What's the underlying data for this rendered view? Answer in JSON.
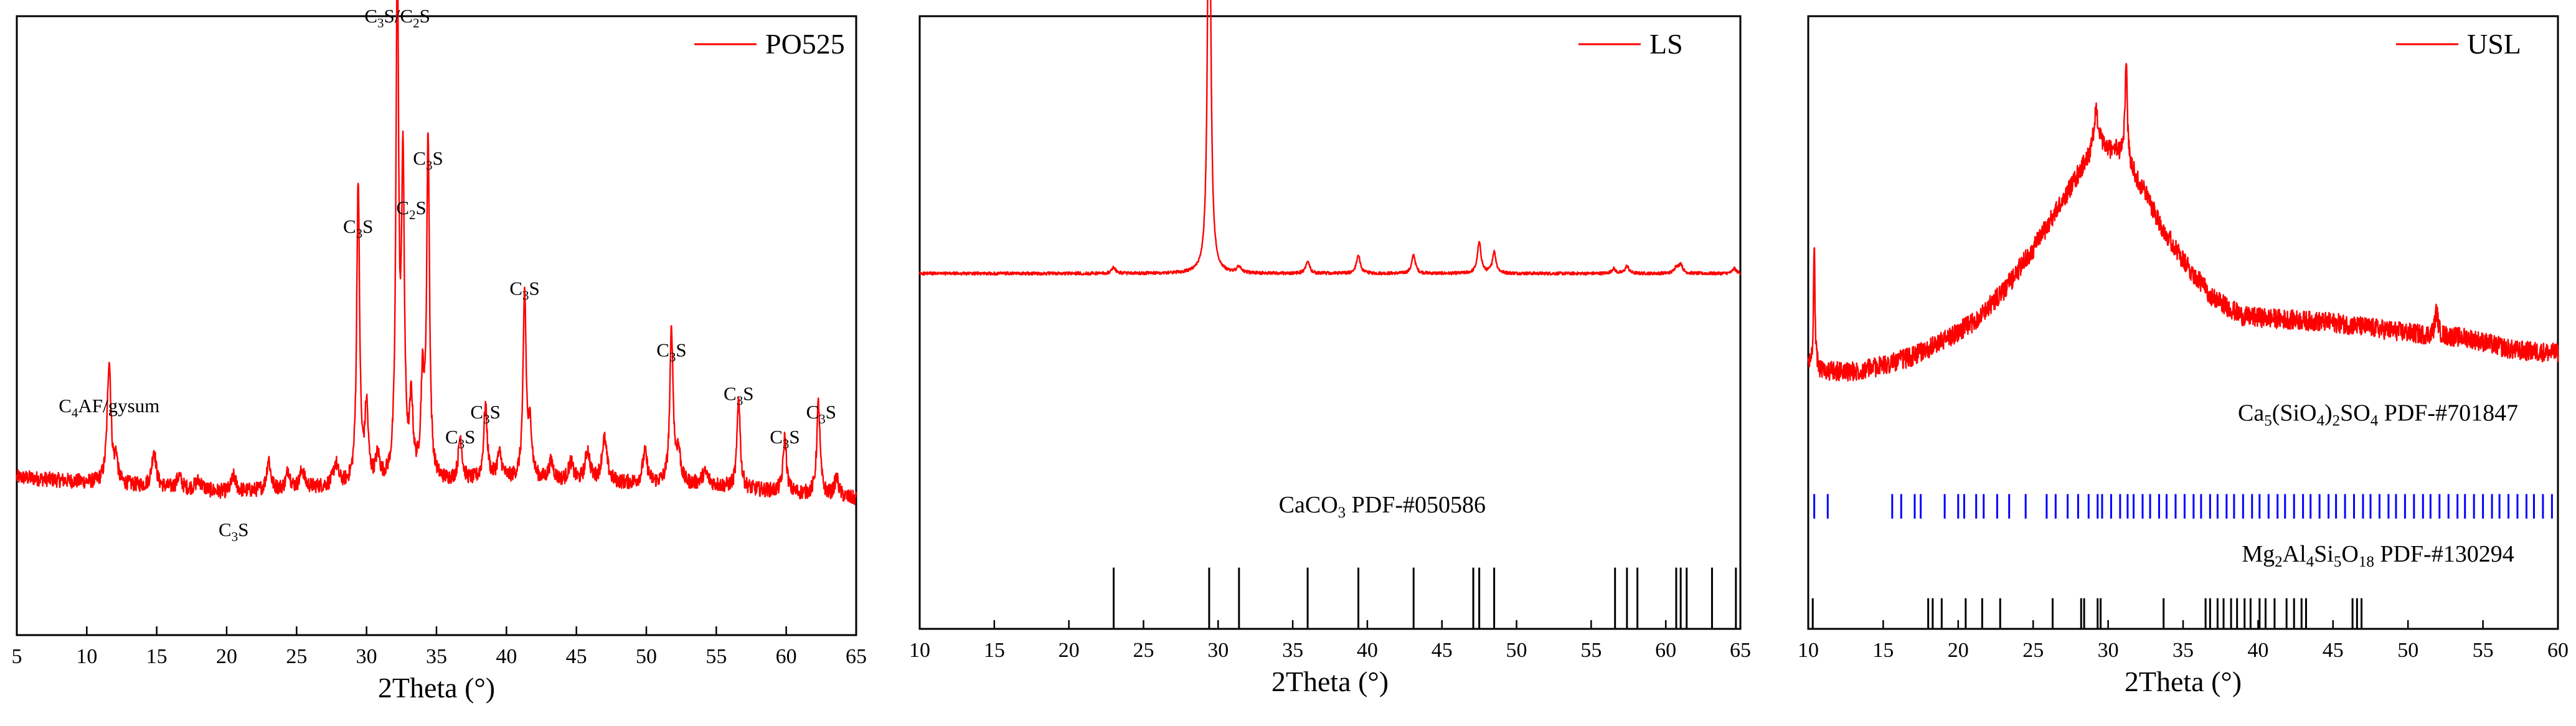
{
  "chart_data": [
    {
      "type": "line",
      "xlabel": "2Theta (°)",
      "xlim": [
        5,
        65
      ],
      "xticks": [
        5,
        10,
        15,
        20,
        25,
        30,
        35,
        40,
        45,
        50,
        55,
        60,
        65
      ],
      "ylim": [
        0,
        100
      ],
      "grid": false,
      "legend": "top-right",
      "series": [
        {
          "name": "PO525",
          "color": "#ff0000",
          "baseline": 11,
          "noise": 1.2,
          "trend": [
            [
              5,
              14.5
            ],
            [
              20,
              12
            ],
            [
              28,
              13
            ],
            [
              40,
              14
            ],
            [
              55,
              13
            ],
            [
              65,
              11
            ]
          ],
          "peaks": [
            [
              11.6,
              20,
              0.16
            ],
            [
              12.1,
              4,
              0.12
            ],
            [
              14.8,
              6,
              0.18
            ],
            [
              16.6,
              2,
              0.2
            ],
            [
              18.0,
              1.5,
              0.3
            ],
            [
              20.5,
              2.5,
              0.2
            ],
            [
              23.0,
              5,
              0.16
            ],
            [
              24.4,
              3,
              0.16
            ],
            [
              25.4,
              3,
              0.18
            ],
            [
              27.8,
              3.5,
              0.2
            ],
            [
              29.4,
              49,
              0.12
            ],
            [
              30.0,
              12,
              0.14
            ],
            [
              30.8,
              4,
              0.18
            ],
            [
              32.2,
              85,
              0.11
            ],
            [
              32.6,
              50,
              0.12
            ],
            [
              33.2,
              12,
              0.14
            ],
            [
              34.0,
              15,
              0.14
            ],
            [
              34.4,
              55,
              0.12
            ],
            [
              36.7,
              7,
              0.16
            ],
            [
              38.5,
              12,
              0.15
            ],
            [
              39.5,
              4,
              0.2
            ],
            [
              41.3,
              30,
              0.13
            ],
            [
              41.7,
              8,
              0.15
            ],
            [
              43.2,
              3,
              0.2
            ],
            [
              44.6,
              3,
              0.2
            ],
            [
              45.8,
              5,
              0.2
            ],
            [
              47.0,
              7,
              0.22
            ],
            [
              49.9,
              5,
              0.2
            ],
            [
              51.8,
              25,
              0.14
            ],
            [
              52.3,
              5,
              0.18
            ],
            [
              54.2,
              2,
              0.3
            ],
            [
              56.6,
              15,
              0.13
            ],
            [
              59.9,
              9,
              0.14
            ],
            [
              62.3,
              15,
              0.14
            ],
            [
              63.6,
              3,
              0.18
            ]
          ]
        }
      ],
      "annotations": [
        {
          "parts": [
            [
              "C",
              "n"
            ],
            [
              "4",
              "s"
            ],
            [
              "AF/gysum",
              "n"
            ]
          ],
          "x": 11.6,
          "y": 36
        },
        {
          "parts": [
            [
              "C",
              "n"
            ],
            [
              "3",
              "s"
            ],
            [
              "S",
              "n"
            ]
          ],
          "x": 20.5,
          "y": 16
        },
        {
          "parts": [
            [
              "C",
              "n"
            ],
            [
              "3",
              "s"
            ],
            [
              "S",
              "n"
            ]
          ],
          "x": 29.4,
          "y": 65
        },
        {
          "parts": [
            [
              "C",
              "n"
            ],
            [
              "3",
              "s"
            ],
            [
              "S/C",
              "n"
            ],
            [
              "2",
              "s"
            ],
            [
              "S",
              "n"
            ]
          ],
          "x": 32.2,
          "y": 99
        },
        {
          "parts": [
            [
              "C",
              "n"
            ],
            [
              "2",
              "s"
            ],
            [
              "S",
              "n"
            ]
          ],
          "x": 33.2,
          "y": 68
        },
        {
          "parts": [
            [
              "C",
              "n"
            ],
            [
              "3",
              "s"
            ],
            [
              "S",
              "n"
            ]
          ],
          "x": 34.4,
          "y": 76
        },
        {
          "parts": [
            [
              "C",
              "n"
            ],
            [
              "3",
              "s"
            ],
            [
              "S",
              "n"
            ]
          ],
          "x": 36.7,
          "y": 31
        },
        {
          "parts": [
            [
              "C",
              "n"
            ],
            [
              "3",
              "s"
            ],
            [
              "S",
              "n"
            ]
          ],
          "x": 38.5,
          "y": 35
        },
        {
          "parts": [
            [
              "C",
              "n"
            ],
            [
              "3",
              "s"
            ],
            [
              "S",
              "n"
            ]
          ],
          "x": 41.3,
          "y": 55
        },
        {
          "parts": [
            [
              "C",
              "n"
            ],
            [
              "3",
              "s"
            ],
            [
              "S",
              "n"
            ]
          ],
          "x": 51.8,
          "y": 45
        },
        {
          "parts": [
            [
              "C",
              "n"
            ],
            [
              "3",
              "s"
            ],
            [
              "S",
              "n"
            ]
          ],
          "x": 56.6,
          "y": 38
        },
        {
          "parts": [
            [
              "C",
              "n"
            ],
            [
              "3",
              "s"
            ],
            [
              "S",
              "n"
            ]
          ],
          "x": 59.9,
          "y": 31
        },
        {
          "parts": [
            [
              "C",
              "n"
            ],
            [
              "3",
              "s"
            ],
            [
              "S",
              "n"
            ]
          ],
          "x": 62.5,
          "y": 35
        }
      ]
    },
    {
      "type": "line",
      "xlabel": "2Theta (°)",
      "xlim": [
        10,
        65
      ],
      "xticks": [
        10,
        15,
        20,
        25,
        30,
        35,
        40,
        45,
        50,
        55,
        60,
        65
      ],
      "ylim": [
        0,
        100
      ],
      "grid": false,
      "legend": "top-right",
      "series": [
        {
          "name": "LS",
          "color": "#ff0000",
          "baseline": 29,
          "noise": 0.25,
          "trend": [
            [
              10,
              29
            ],
            [
              65,
              29
            ]
          ],
          "peaks": [
            [
              23.0,
              1.0,
              0.15
            ],
            [
              29.4,
              78,
              0.12
            ],
            [
              31.4,
              1.0,
              0.15
            ],
            [
              36.0,
              2.0,
              0.15
            ],
            [
              39.4,
              3.0,
              0.15
            ],
            [
              43.1,
              3.0,
              0.15
            ],
            [
              47.5,
              5.0,
              0.15
            ],
            [
              48.5,
              3.5,
              0.15
            ],
            [
              56.5,
              0.8,
              0.15
            ],
            [
              57.4,
              1.2,
              0.15
            ],
            [
              60.7,
              1.0,
              0.15
            ],
            [
              61.0,
              1.5,
              0.15
            ],
            [
              64.6,
              0.8,
              0.15
            ]
          ]
        }
      ],
      "reference": {
        "parts": [
          [
            "CaCO",
            "n"
          ],
          [
            "3",
            "s"
          ],
          [
            " PDF-#050586",
            "n"
          ]
        ],
        "label_x": 41,
        "label_y": 19,
        "color": "#000000",
        "stick_bottom": 0,
        "stick_top": 10,
        "positions": [
          23.0,
          29.4,
          31.4,
          36.0,
          39.4,
          43.1,
          47.1,
          47.5,
          48.5,
          56.6,
          57.4,
          58.1,
          60.7,
          61.0,
          61.4,
          63.1,
          64.7
        ]
      }
    },
    {
      "type": "line",
      "xlabel": "2Theta (°)",
      "xlim": [
        10,
        60
      ],
      "xticks": [
        10,
        15,
        20,
        25,
        30,
        35,
        40,
        45,
        50,
        55,
        60
      ],
      "ylim": [
        0,
        100
      ],
      "grid": false,
      "legend": "top-right",
      "series": [
        {
          "name": "USL",
          "color": "#ff0000",
          "baseline": 0,
          "noise": 1.6,
          "trend": [
            [
              10.0,
              43
            ],
            [
              11,
              42
            ],
            [
              13,
              42
            ],
            [
              15,
              43
            ],
            [
              17,
              44.5
            ],
            [
              19,
              47
            ],
            [
              21,
              50
            ],
            [
              23,
              55
            ],
            [
              25,
              62
            ],
            [
              27,
              70
            ],
            [
              28.5,
              76
            ],
            [
              29.5,
              78
            ],
            [
              30.5,
              78
            ],
            [
              31.5,
              75
            ],
            [
              32.5,
              71
            ],
            [
              33.5,
              66
            ],
            [
              35,
              60
            ],
            [
              37,
              54
            ],
            [
              39,
              51
            ],
            [
              42,
              50.5
            ],
            [
              45,
              50
            ],
            [
              48,
              49
            ],
            [
              51,
              48
            ],
            [
              54,
              47.5
            ],
            [
              57,
              45.5
            ],
            [
              60,
              45
            ]
          ],
          "peaks": [
            [
              10.4,
              20,
              0.06
            ],
            [
              29.2,
              7,
              0.2
            ],
            [
              31.2,
              16,
              0.1
            ],
            [
              51.9,
              4,
              0.12
            ]
          ]
        }
      ],
      "references": [
        {
          "parts": [
            [
              "Ca",
              "n"
            ],
            [
              "5",
              "s"
            ],
            [
              "(SiO",
              "n"
            ],
            [
              "4",
              "s"
            ],
            [
              ")",
              "n"
            ],
            [
              "2",
              "s"
            ],
            [
              "SO",
              "n"
            ],
            [
              "4",
              "s"
            ],
            [
              " PDF-#701847",
              "n"
            ]
          ],
          "label_x": 48,
          "label_y": 34,
          "color": "#0000ff",
          "stick_bottom": 18,
          "stick_top": 22,
          "positions": [
            10.4,
            11.3,
            15.6,
            16.2,
            17.1,
            17.5,
            19.1,
            20.0,
            20.4,
            21.2,
            21.7,
            22.6,
            23.4,
            24.5,
            25.9,
            26.5,
            27.3,
            28.0,
            28.7,
            29.3,
            29.6,
            30.2,
            30.8,
            31.3,
            31.7,
            32.3,
            32.8,
            33.4,
            33.9,
            34.5,
            35.1,
            35.7,
            36.2,
            36.8,
            37.3,
            37.9,
            38.4,
            39.0,
            39.6,
            40.1,
            40.7,
            41.3,
            41.8,
            42.4,
            43.0,
            43.5,
            44.1,
            44.7,
            45.2,
            45.8,
            46.4,
            47.0,
            47.5,
            48.1,
            48.7,
            49.2,
            49.8,
            50.4,
            51.0,
            51.5,
            52.1,
            52.7,
            53.3,
            53.8,
            54.4,
            55.0,
            55.6,
            56.1,
            56.7,
            57.3,
            57.9,
            58.4,
            59.0,
            59.6
          ]
        },
        {
          "parts": [
            [
              "Mg",
              "n"
            ],
            [
              "2",
              "s"
            ],
            [
              "Al",
              "n"
            ],
            [
              "4",
              "s"
            ],
            [
              "Si",
              "n"
            ],
            [
              "5",
              "s"
            ],
            [
              "O",
              "n"
            ],
            [
              "18",
              "s"
            ],
            [
              " PDF-#130294",
              "n"
            ]
          ],
          "label_x": 48,
          "label_y": 11,
          "color": "#000000",
          "stick_bottom": 0,
          "stick_top": 5,
          "positions": [
            10.3,
            18.0,
            18.3,
            18.9,
            20.5,
            21.6,
            22.8,
            26.3,
            28.2,
            28.4,
            29.3,
            29.5,
            33.7,
            36.5,
            36.8,
            37.3,
            37.7,
            38.2,
            38.6,
            39.1,
            39.5,
            40.1,
            40.5,
            41.1,
            41.9,
            42.4,
            42.9,
            43.2,
            46.3,
            46.6,
            46.9
          ]
        }
      ]
    }
  ]
}
